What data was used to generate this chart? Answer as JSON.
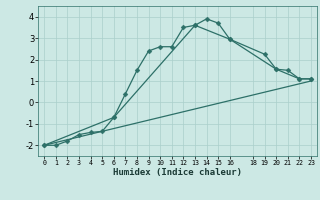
{
  "bg_color": "#cce8e4",
  "grid_color": "#aacfcb",
  "line_color": "#2d7068",
  "xlabel": "Humidex (Indice chaleur)",
  "xlim": [
    -0.5,
    23.5
  ],
  "ylim": [
    -2.5,
    4.5
  ],
  "yticks": [
    -2,
    -1,
    0,
    1,
    2,
    3,
    4
  ],
  "xticks": [
    0,
    1,
    2,
    3,
    4,
    5,
    6,
    7,
    8,
    9,
    10,
    11,
    12,
    13,
    14,
    15,
    16,
    18,
    19,
    20,
    21,
    22,
    23
  ],
  "line1_x": [
    0,
    1,
    2,
    3,
    4,
    5,
    6,
    7,
    8,
    9,
    10,
    11,
    12,
    13,
    14,
    15,
    16,
    19,
    20,
    21,
    22,
    23
  ],
  "line1_y": [
    -2.0,
    -2.0,
    -1.8,
    -1.5,
    -1.4,
    -1.35,
    -0.7,
    0.4,
    1.5,
    2.4,
    2.6,
    2.6,
    3.5,
    3.6,
    3.9,
    3.7,
    2.95,
    2.25,
    1.55,
    1.5,
    1.1,
    1.1
  ],
  "line2_x": [
    0,
    23
  ],
  "line2_y": [
    -2.0,
    1.0
  ],
  "line3_x": [
    0,
    6,
    13,
    16,
    20,
    22,
    23
  ],
  "line3_y": [
    -2.0,
    -0.7,
    3.6,
    2.95,
    1.55,
    1.1,
    1.1
  ],
  "marker": "D",
  "markersize": 2.5,
  "linewidth": 0.9
}
